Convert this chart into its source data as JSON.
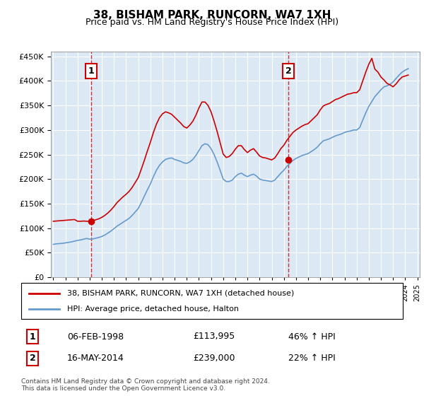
{
  "title": "38, BISHAM PARK, RUNCORN, WA7 1XH",
  "subtitle": "Price paid vs. HM Land Registry's House Price Index (HPI)",
  "hpi_color": "#6699cc",
  "property_color": "#cc0000",
  "background_color": "#dce9f5",
  "ylim": [
    0,
    460000
  ],
  "yticks": [
    0,
    50000,
    100000,
    150000,
    200000,
    250000,
    300000,
    350000,
    400000,
    450000
  ],
  "sale1_date": "06-FEB-1998",
  "sale1_price": 113995,
  "sale1_label": "1",
  "sale1_hpi_pct": "46%",
  "sale2_date": "16-MAY-2014",
  "sale2_price": 239000,
  "sale2_label": "2",
  "sale2_hpi_pct": "22%",
  "legend_property": "38, BISHAM PARK, RUNCORN, WA7 1XH (detached house)",
  "legend_hpi": "HPI: Average price, detached house, Halton",
  "footer": "Contains HM Land Registry data © Crown copyright and database right 2024.\nThis data is licensed under the Open Government Licence v3.0.",
  "hpi_years": [
    1995.0,
    1995.25,
    1995.5,
    1995.75,
    1996.0,
    1996.25,
    1996.5,
    1996.75,
    1997.0,
    1997.25,
    1997.5,
    1997.75,
    1998.0,
    1998.25,
    1998.5,
    1998.75,
    1999.0,
    1999.25,
    1999.5,
    1999.75,
    2000.0,
    2000.25,
    2000.5,
    2000.75,
    2001.0,
    2001.25,
    2001.5,
    2001.75,
    2002.0,
    2002.25,
    2002.5,
    2002.75,
    2003.0,
    2003.25,
    2003.5,
    2003.75,
    2004.0,
    2004.25,
    2004.5,
    2004.75,
    2005.0,
    2005.25,
    2005.5,
    2005.75,
    2006.0,
    2006.25,
    2006.5,
    2006.75,
    2007.0,
    2007.25,
    2007.5,
    2007.75,
    2008.0,
    2008.25,
    2008.5,
    2008.75,
    2009.0,
    2009.25,
    2009.5,
    2009.75,
    2010.0,
    2010.25,
    2010.5,
    2010.75,
    2011.0,
    2011.25,
    2011.5,
    2011.75,
    2012.0,
    2012.25,
    2012.5,
    2012.75,
    2013.0,
    2013.25,
    2013.5,
    2013.75,
    2014.0,
    2014.25,
    2014.5,
    2014.75,
    2015.0,
    2015.25,
    2015.5,
    2015.75,
    2016.0,
    2016.25,
    2016.5,
    2016.75,
    2017.0,
    2017.25,
    2017.5,
    2017.75,
    2018.0,
    2018.25,
    2018.5,
    2018.75,
    2019.0,
    2019.25,
    2019.5,
    2019.75,
    2020.0,
    2020.25,
    2020.5,
    2020.75,
    2021.0,
    2021.25,
    2021.5,
    2021.75,
    2022.0,
    2022.25,
    2022.5,
    2022.75,
    2023.0,
    2023.25,
    2023.5,
    2023.75,
    2024.0,
    2024.25
  ],
  "hpi_values": [
    67000,
    68000,
    68500,
    69000,
    70000,
    71000,
    72000,
    73500,
    75000,
    76000,
    77500,
    79000,
    77500,
    78000,
    79500,
    81000,
    83000,
    86000,
    90000,
    94000,
    99000,
    104000,
    108000,
    112000,
    116000,
    120000,
    126000,
    133000,
    140000,
    152000,
    165000,
    178000,
    190000,
    205000,
    218000,
    228000,
    235000,
    240000,
    242000,
    243000,
    240000,
    238000,
    236000,
    233000,
    232000,
    235000,
    240000,
    248000,
    258000,
    268000,
    272000,
    270000,
    262000,
    250000,
    235000,
    218000,
    200000,
    195000,
    195000,
    198000,
    205000,
    210000,
    212000,
    208000,
    205000,
    208000,
    210000,
    206000,
    200000,
    198000,
    197000,
    196000,
    195000,
    198000,
    205000,
    212000,
    218000,
    226000,
    232000,
    238000,
    242000,
    245000,
    248000,
    250000,
    252000,
    256000,
    260000,
    265000,
    272000,
    278000,
    280000,
    282000,
    285000,
    288000,
    290000,
    292000,
    295000,
    297000,
    298000,
    300000,
    300000,
    305000,
    320000,
    335000,
    348000,
    358000,
    368000,
    375000,
    382000,
    388000,
    390000,
    393000,
    398000,
    405000,
    412000,
    418000,
    422000,
    425000
  ],
  "property_years": [
    1995.0,
    1995.25,
    1995.5,
    1995.75,
    1996.0,
    1996.25,
    1996.5,
    1996.75,
    1997.0,
    1997.25,
    1997.5,
    1997.75,
    1998.0,
    1998.25,
    1998.5,
    1998.75,
    1999.0,
    1999.25,
    1999.5,
    1999.75,
    2000.0,
    2000.25,
    2000.5,
    2000.75,
    2001.0,
    2001.25,
    2001.5,
    2001.75,
    2002.0,
    2002.25,
    2002.5,
    2002.75,
    2003.0,
    2003.25,
    2003.5,
    2003.75,
    2004.0,
    2004.25,
    2004.5,
    2004.75,
    2005.0,
    2005.25,
    2005.5,
    2005.75,
    2006.0,
    2006.25,
    2006.5,
    2006.75,
    2007.0,
    2007.25,
    2007.5,
    2007.75,
    2008.0,
    2008.25,
    2008.5,
    2008.75,
    2009.0,
    2009.25,
    2009.5,
    2009.75,
    2010.0,
    2010.25,
    2010.5,
    2010.75,
    2011.0,
    2011.25,
    2011.5,
    2011.75,
    2012.0,
    2012.25,
    2012.5,
    2012.75,
    2013.0,
    2013.25,
    2013.5,
    2013.75,
    2014.0,
    2014.25,
    2014.5,
    2014.75,
    2015.0,
    2015.25,
    2015.5,
    2015.75,
    2016.0,
    2016.25,
    2016.5,
    2016.75,
    2017.0,
    2017.25,
    2017.5,
    2017.75,
    2018.0,
    2018.25,
    2018.5,
    2018.75,
    2019.0,
    2019.25,
    2019.5,
    2019.75,
    2020.0,
    2020.25,
    2020.5,
    2020.75,
    2021.0,
    2021.25,
    2021.5,
    2021.75,
    2022.0,
    2022.25,
    2022.5,
    2022.75,
    2023.0,
    2023.25,
    2023.5,
    2023.75,
    2024.0,
    2024.25
  ],
  "property_values": [
    113995,
    114500,
    115000,
    115500,
    116000,
    116500,
    117000,
    117500,
    113995,
    114000,
    114500,
    113995,
    113995,
    115000,
    117000,
    119000,
    122000,
    126000,
    131000,
    137000,
    144000,
    152000,
    158000,
    164000,
    169000,
    175000,
    183000,
    193000,
    203000,
    220000,
    238000,
    257000,
    275000,
    295000,
    312000,
    325000,
    333000,
    337000,
    335000,
    332000,
    326000,
    320000,
    314000,
    307000,
    304000,
    310000,
    318000,
    330000,
    345000,
    357000,
    357000,
    350000,
    337000,
    318000,
    297000,
    274000,
    251000,
    244000,
    246000,
    252000,
    261000,
    268000,
    268000,
    260000,
    254000,
    259000,
    262000,
    255000,
    247000,
    244000,
    243000,
    241000,
    239000,
    243000,
    252000,
    262000,
    269000,
    279000,
    287000,
    295000,
    300000,
    304000,
    308000,
    311000,
    313000,
    319000,
    325000,
    331000,
    341000,
    349000,
    352000,
    354000,
    358000,
    362000,
    364000,
    367000,
    370000,
    373000,
    374000,
    376000,
    376000,
    382000,
    400000,
    418000,
    434000,
    446000,
    424000,
    418000,
    408000,
    402000,
    395000,
    392000,
    388000,
    394000,
    402000,
    408000,
    410000,
    412000
  ],
  "sale1_year": 1998.1,
  "sale2_year": 2014.37,
  "xlim_left": 1994.8,
  "xlim_right": 2025.2
}
